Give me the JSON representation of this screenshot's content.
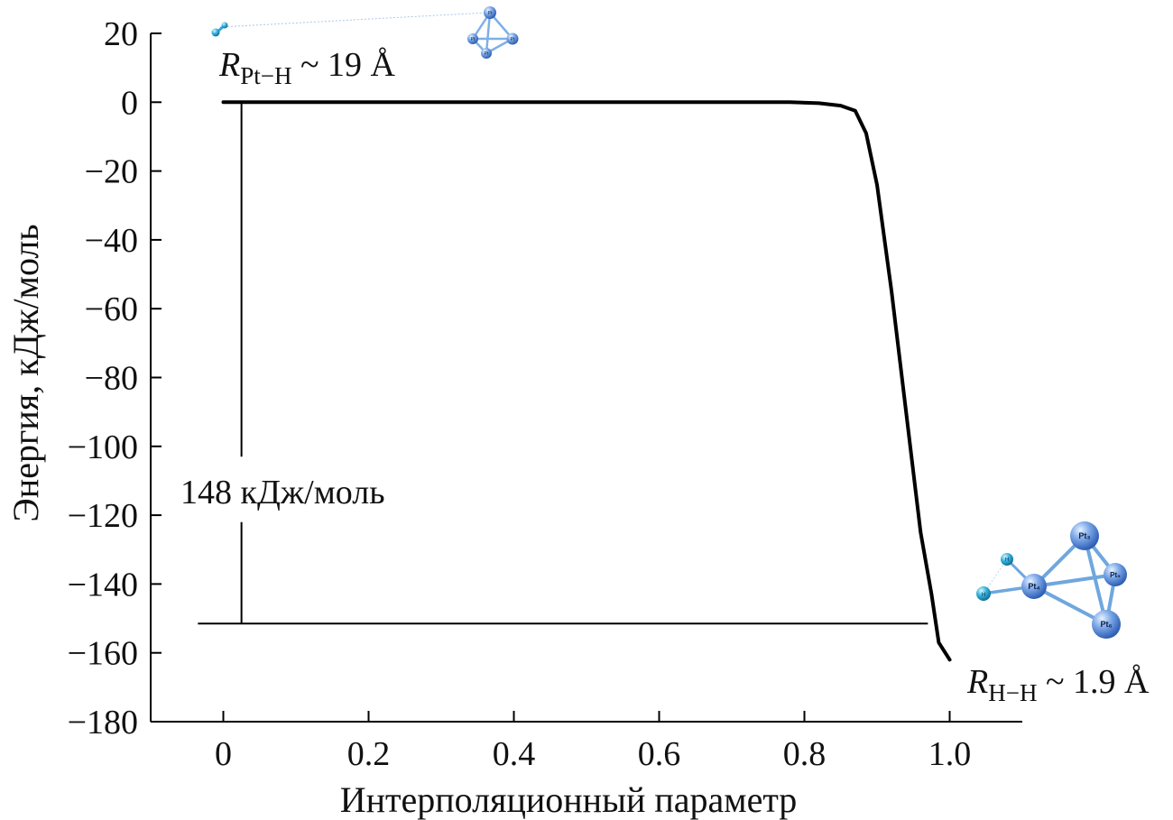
{
  "chart_data": {
    "type": "line",
    "xlabel": "Интерполяционный параметр",
    "ylabel": "Энергия, кДж/моль",
    "xlim": [
      -0.1,
      1.1
    ],
    "ylim": [
      -180,
      20
    ],
    "x_ticks": [
      0,
      0.2,
      0.4,
      0.6,
      0.8,
      1.0
    ],
    "x_tick_labels": [
      "0",
      "0.2",
      "0.4",
      "0.6",
      "0.8",
      "1.0"
    ],
    "y_ticks": [
      20,
      0,
      -20,
      -40,
      -60,
      -80,
      -100,
      -120,
      -140,
      -160,
      -180
    ],
    "y_tick_labels": [
      "20",
      "0",
      "−20",
      "−40",
      "−60",
      "−80",
      "−100",
      "−120",
      "−140",
      "−160",
      "−180"
    ],
    "grid": false,
    "series": [
      {
        "x": [
          0,
          0.1,
          0.2,
          0.3,
          0.4,
          0.5,
          0.6,
          0.7,
          0.78,
          0.82,
          0.85,
          0.87,
          0.885,
          0.9,
          0.92,
          0.94,
          0.96,
          0.975,
          0.985,
          1.0
        ],
        "y": [
          0,
          0,
          0,
          0,
          0,
          0,
          0,
          0,
          0,
          -0.3,
          -1.0,
          -2.5,
          -9,
          -24,
          -55,
          -90,
          -125,
          -143,
          -157,
          -162
        ]
      }
    ],
    "annotations": {
      "top_label_main": "R",
      "top_label_sub": "Pt−H",
      "top_label_rest": " ~ 19 Å",
      "bottom_label_main": "R",
      "bottom_label_sub": "H−H",
      "bottom_label_rest": " ~ 1.9 Å",
      "energy_gap": "148 кДж/моль",
      "gap_x": 0.025,
      "gap_top": 0,
      "gap_bottom": -151.5,
      "gap_line_xlim": [
        -0.035,
        0.97
      ],
      "atom_labels_small": [
        "Pt",
        "Pt",
        "Pt",
        "Pt"
      ],
      "atom_labels_large": [
        "Pt₃",
        "Pt₄",
        "Pt₅",
        "Pt₆"
      ],
      "h_labels": [
        "H",
        "H"
      ]
    },
    "colors": {
      "line": "#000000",
      "pt_atom": "#5b8fdc",
      "h_atom": "#29a8d0",
      "bond": "#7fb0e6"
    }
  }
}
